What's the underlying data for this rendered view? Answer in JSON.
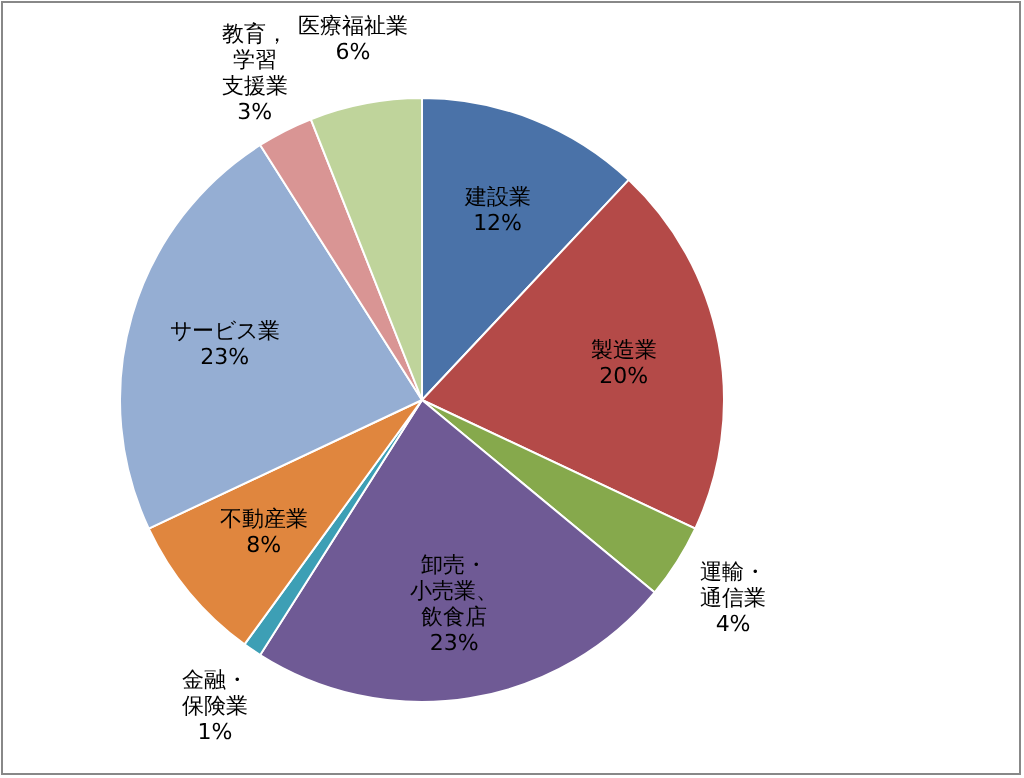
{
  "chart_data": {
    "type": "pie",
    "categories": [
      "建設業",
      "製造業",
      "運輸・通信業",
      "卸売・小売業、飲食店",
      "金融・保険業",
      "不動産業",
      "サービス業",
      "教育，学習支援業",
      "医療福祉業"
    ],
    "values": [
      12,
      20,
      4,
      23,
      1,
      8,
      23,
      3,
      6
    ],
    "value_labels": [
      "12%",
      "20%",
      "4%",
      "23%",
      "1%",
      "8%",
      "23%",
      "3%",
      "6%"
    ],
    "colors": [
      "#4a72a8",
      "#b44a48",
      "#86a94c",
      "#6f5a95",
      "#3d9fb5",
      "#e0863e",
      "#95aed3",
      "#d99594",
      "#bfd49b"
    ],
    "legend": false
  }
}
